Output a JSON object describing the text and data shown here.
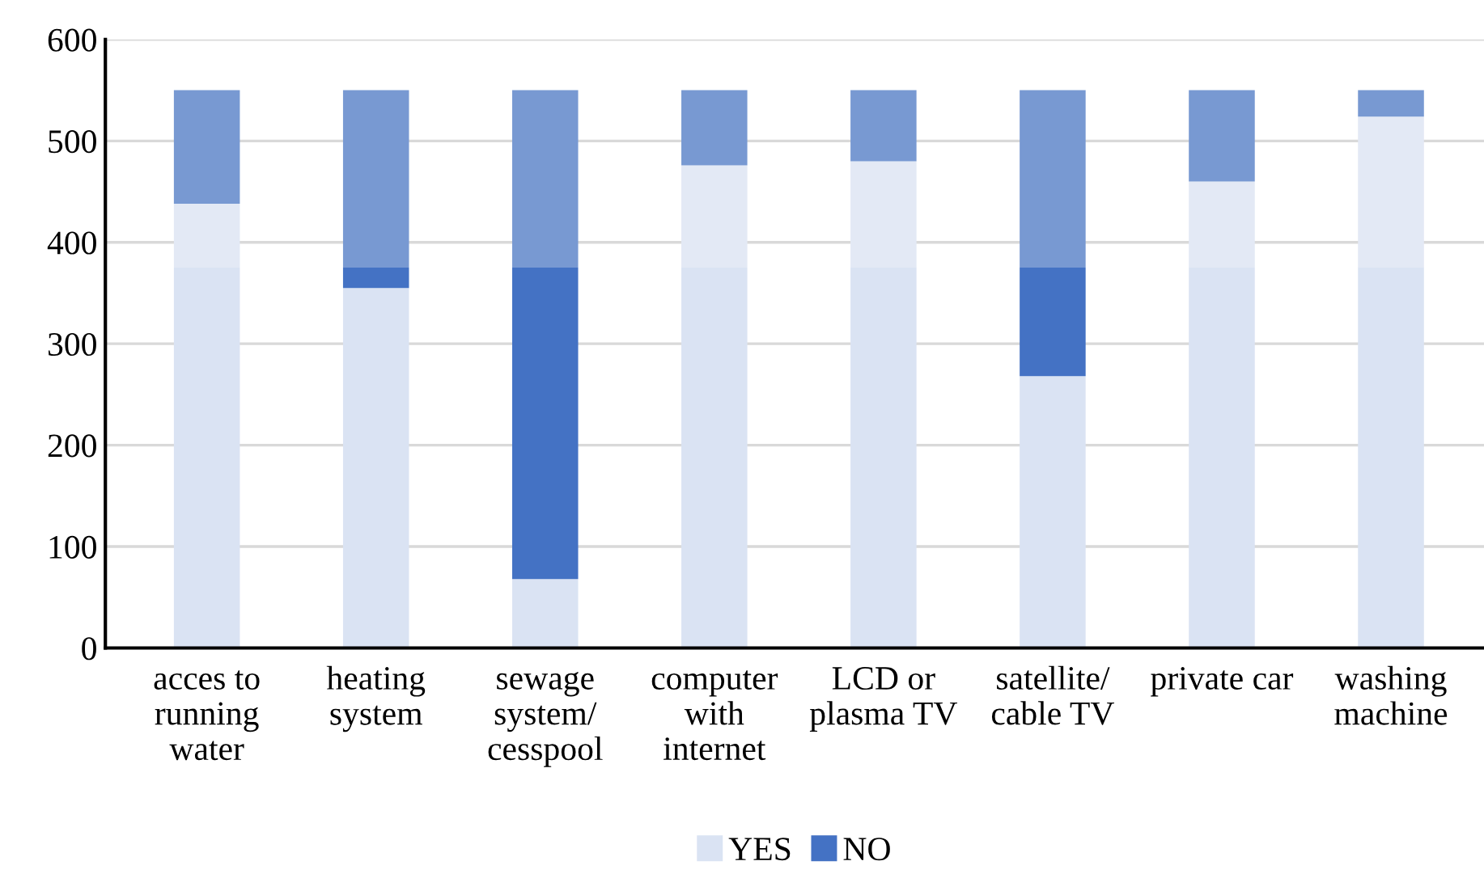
{
  "chart_data": {
    "type": "bar",
    "categories": [
      "acces to\nrunning\nwater",
      "heating\nsystem",
      "sewage\nsystem/\ncesspool",
      "computer\nwith\ninternet",
      "LCD or\nplasma TV",
      "satellite/\ncable TV",
      "private car",
      "washing\nmachine"
    ],
    "stacked": true,
    "series": [
      {
        "name": "YES",
        "color": "#dae3f3",
        "values": [
          375,
          355,
          68,
          375,
          375,
          268,
          375,
          375
        ]
      },
      {
        "name": "NO",
        "color": "#4472c4",
        "values": [
          0,
          20,
          307,
          0,
          0,
          107,
          0,
          0
        ]
      },
      {
        "color": "#e3e9f5",
        "values": [
          63,
          0,
          0,
          101,
          105,
          0,
          85,
          149
        ]
      },
      {
        "color": "#7899d2",
        "values": [
          112,
          175,
          175,
          74,
          70,
          175,
          90,
          26
        ]
      }
    ],
    "ylim": [
      0,
      600
    ],
    "yticks": [
      0,
      100,
      200,
      300,
      400,
      500,
      600
    ],
    "grid": "y",
    "legend": "bottom"
  }
}
